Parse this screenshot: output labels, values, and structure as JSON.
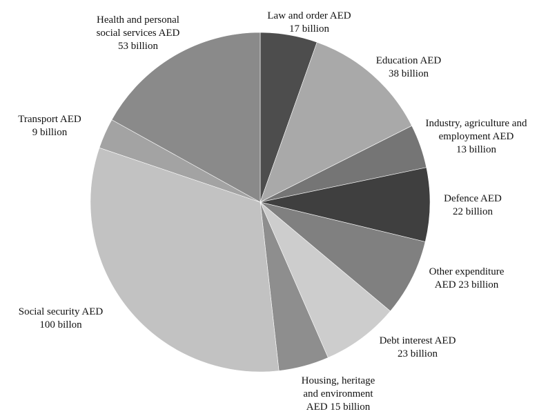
{
  "chart_data": {
    "type": "pie",
    "title": "",
    "unit": "AED billion",
    "slices": [
      {
        "lines": [
          "Law and order AED",
          "17 billion"
        ],
        "value": 17,
        "color": "#4d4d4d"
      },
      {
        "lines": [
          "Education AED",
          "38 billion"
        ],
        "value": 38,
        "color": "#a9a9a9"
      },
      {
        "lines": [
          "Industry, agriculture and",
          "employment AED",
          "13 billion"
        ],
        "value": 13,
        "color": "#757575"
      },
      {
        "lines": [
          "Defence AED",
          "22 billion"
        ],
        "value": 22,
        "color": "#3f3f3f"
      },
      {
        "lines": [
          "Other expenditure",
          "AED 23 billion"
        ],
        "value": 23,
        "color": "#808080"
      },
      {
        "lines": [
          "Debt interest AED",
          "23 billion"
        ],
        "value": 23,
        "color": "#cdcdcd"
      },
      {
        "lines": [
          "Housing, heritage",
          "and environment",
          "AED 15 billion"
        ],
        "value": 15,
        "color": "#8e8e8e"
      },
      {
        "lines": [
          "Social security AED",
          "100 billon"
        ],
        "value": 100,
        "color": "#c2c2c2"
      },
      {
        "lines": [
          "Transport AED",
          "9 billion"
        ],
        "value": 9,
        "color": "#a3a3a3"
      },
      {
        "lines": [
          "Health and personal",
          "social services AED",
          "53 billion"
        ],
        "value": 53,
        "color": "#8a8a8a"
      }
    ]
  }
}
